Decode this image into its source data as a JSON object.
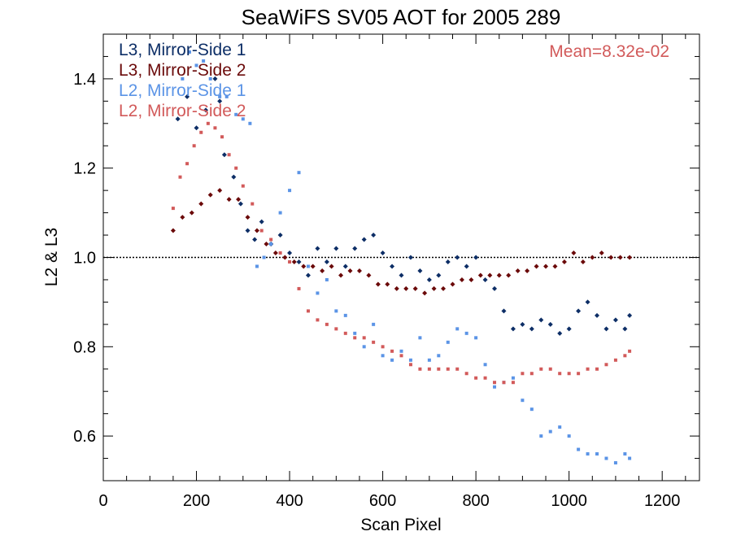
{
  "chart_data": {
    "type": "scatter",
    "title": "SeaWiFS SV05 AOT for 2005 289",
    "xlabel": "Scan Pixel",
    "ylabel": "L2 & L3",
    "xlim": [
      0,
      1280
    ],
    "ylim": [
      0.5,
      1.5
    ],
    "x_ticks": [
      0,
      200,
      400,
      600,
      800,
      1000,
      1200
    ],
    "y_ticks": [
      0.6,
      0.8,
      1.0,
      1.2,
      1.4
    ],
    "x_tick_labels": [
      "0",
      "200",
      "400",
      "600",
      "800",
      "1000",
      "1200"
    ],
    "y_tick_labels": [
      "0.6",
      "0.8",
      "1.0",
      "1.2",
      "1.4"
    ],
    "reference_line": 1.0,
    "annotation": "Mean=8.32e-02",
    "annotation_color": "#d25a5a",
    "legend_position": "top-left",
    "series": [
      {
        "name": "L3, Mirror-Side 1",
        "color": "#0d2e66",
        "marker": "diamond",
        "points": [
          [
            160,
            1.31
          ],
          [
            180,
            1.36
          ],
          [
            200,
            1.29
          ],
          [
            220,
            1.33
          ],
          [
            240,
            1.4
          ],
          [
            250,
            1.35
          ],
          [
            260,
            1.23
          ],
          [
            280,
            1.18
          ],
          [
            295,
            1.12
          ],
          [
            310,
            1.06
          ],
          [
            325,
            1.04
          ],
          [
            340,
            1.08
          ],
          [
            360,
            1.03
          ],
          [
            380,
            1.05
          ],
          [
            400,
            1.01
          ],
          [
            420,
            0.99
          ],
          [
            440,
            0.96
          ],
          [
            460,
            1.02
          ],
          [
            480,
            0.99
          ],
          [
            500,
            1.02
          ],
          [
            520,
            0.98
          ],
          [
            540,
            1.02
          ],
          [
            560,
            1.04
          ],
          [
            580,
            1.05
          ],
          [
            600,
            1.01
          ],
          [
            620,
            0.98
          ],
          [
            640,
            0.96
          ],
          [
            660,
            1.0
          ],
          [
            680,
            0.97
          ],
          [
            700,
            0.95
          ],
          [
            720,
            0.96
          ],
          [
            740,
            0.99
          ],
          [
            760,
            1.0
          ],
          [
            780,
            0.98
          ],
          [
            800,
            1.0
          ],
          [
            820,
            0.95
          ],
          [
            840,
            0.93
          ],
          [
            860,
            0.88
          ],
          [
            880,
            0.84
          ],
          [
            900,
            0.85
          ],
          [
            920,
            0.84
          ],
          [
            940,
            0.86
          ],
          [
            960,
            0.85
          ],
          [
            980,
            0.83
          ],
          [
            1000,
            0.84
          ],
          [
            1020,
            0.88
          ],
          [
            1040,
            0.9
          ],
          [
            1060,
            0.87
          ],
          [
            1080,
            0.84
          ],
          [
            1100,
            0.86
          ],
          [
            1120,
            0.84
          ],
          [
            1130,
            0.87
          ]
        ]
      },
      {
        "name": "L3, Mirror-Side 2",
        "color": "#6b0a0a",
        "marker": "diamond",
        "points": [
          [
            150,
            1.06
          ],
          [
            170,
            1.09
          ],
          [
            190,
            1.1
          ],
          [
            210,
            1.12
          ],
          [
            230,
            1.14
          ],
          [
            250,
            1.15
          ],
          [
            270,
            1.13
          ],
          [
            290,
            1.13
          ],
          [
            310,
            1.09
          ],
          [
            330,
            1.06
          ],
          [
            350,
            1.03
          ],
          [
            370,
            1.01
          ],
          [
            390,
            1.0
          ],
          [
            410,
            0.99
          ],
          [
            430,
            0.98
          ],
          [
            450,
            0.98
          ],
          [
            470,
            0.97
          ],
          [
            490,
            0.98
          ],
          [
            510,
            0.96
          ],
          [
            530,
            0.97
          ],
          [
            550,
            0.97
          ],
          [
            570,
            0.96
          ],
          [
            590,
            0.94
          ],
          [
            610,
            0.94
          ],
          [
            630,
            0.93
          ],
          [
            650,
            0.93
          ],
          [
            670,
            0.93
          ],
          [
            690,
            0.92
          ],
          [
            710,
            0.93
          ],
          [
            730,
            0.93
          ],
          [
            750,
            0.94
          ],
          [
            770,
            0.95
          ],
          [
            790,
            0.95
          ],
          [
            810,
            0.96
          ],
          [
            830,
            0.96
          ],
          [
            850,
            0.96
          ],
          [
            870,
            0.96
          ],
          [
            890,
            0.97
          ],
          [
            910,
            0.97
          ],
          [
            930,
            0.98
          ],
          [
            950,
            0.98
          ],
          [
            970,
            0.98
          ],
          [
            990,
            0.99
          ],
          [
            1010,
            1.01
          ],
          [
            1030,
            0.99
          ],
          [
            1050,
            1.0
          ],
          [
            1070,
            1.01
          ],
          [
            1090,
            1.0
          ],
          [
            1110,
            1.0
          ],
          [
            1130,
            1.0
          ]
        ]
      },
      {
        "name": "L2, Mirror-Side 1",
        "color": "#5b94e6",
        "marker": "square",
        "points": [
          [
            170,
            1.4
          ],
          [
            185,
            1.46
          ],
          [
            200,
            1.43
          ],
          [
            215,
            1.44
          ],
          [
            230,
            1.4
          ],
          [
            250,
            1.36
          ],
          [
            265,
            1.36
          ],
          [
            285,
            1.32
          ],
          [
            300,
            1.31
          ],
          [
            315,
            1.3
          ],
          [
            330,
            0.98
          ],
          [
            345,
            1.0
          ],
          [
            360,
            1.03
          ],
          [
            380,
            1.1
          ],
          [
            400,
            1.15
          ],
          [
            420,
            1.19
          ],
          [
            440,
            0.98
          ],
          [
            460,
            0.92
          ],
          [
            480,
            0.95
          ],
          [
            500,
            0.88
          ],
          [
            520,
            0.87
          ],
          [
            540,
            0.83
          ],
          [
            560,
            0.8
          ],
          [
            580,
            0.85
          ],
          [
            600,
            0.78
          ],
          [
            620,
            0.77
          ],
          [
            640,
            0.79
          ],
          [
            660,
            0.77
          ],
          [
            680,
            0.82
          ],
          [
            700,
            0.77
          ],
          [
            720,
            0.78
          ],
          [
            740,
            0.81
          ],
          [
            760,
            0.84
          ],
          [
            780,
            0.83
          ],
          [
            800,
            0.82
          ],
          [
            820,
            0.76
          ],
          [
            840,
            0.71
          ],
          [
            860,
            0.72
          ],
          [
            880,
            0.73
          ],
          [
            900,
            0.68
          ],
          [
            920,
            0.66
          ],
          [
            940,
            0.6
          ],
          [
            960,
            0.61
          ],
          [
            980,
            0.62
          ],
          [
            1000,
            0.6
          ],
          [
            1020,
            0.57
          ],
          [
            1040,
            0.56
          ],
          [
            1060,
            0.56
          ],
          [
            1080,
            0.55
          ],
          [
            1100,
            0.54
          ],
          [
            1120,
            0.56
          ],
          [
            1130,
            0.55
          ]
        ]
      },
      {
        "name": "L2, Mirror-Side 2",
        "color": "#d25a5a",
        "marker": "square",
        "points": [
          [
            150,
            1.11
          ],
          [
            165,
            1.18
          ],
          [
            180,
            1.21
          ],
          [
            195,
            1.25
          ],
          [
            210,
            1.28
          ],
          [
            225,
            1.3
          ],
          [
            240,
            1.29
          ],
          [
            255,
            1.27
          ],
          [
            270,
            1.23
          ],
          [
            285,
            1.2
          ],
          [
            300,
            1.16
          ],
          [
            320,
            1.12
          ],
          [
            340,
            1.06
          ],
          [
            360,
            1.04
          ],
          [
            380,
            1.01
          ],
          [
            400,
            0.99
          ],
          [
            420,
            0.93
          ],
          [
            440,
            0.88
          ],
          [
            460,
            0.86
          ],
          [
            480,
            0.85
          ],
          [
            500,
            0.84
          ],
          [
            520,
            0.83
          ],
          [
            540,
            0.82
          ],
          [
            560,
            0.82
          ],
          [
            580,
            0.81
          ],
          [
            600,
            0.8
          ],
          [
            620,
            0.79
          ],
          [
            640,
            0.78
          ],
          [
            660,
            0.76
          ],
          [
            680,
            0.75
          ],
          [
            700,
            0.75
          ],
          [
            720,
            0.75
          ],
          [
            740,
            0.75
          ],
          [
            760,
            0.75
          ],
          [
            780,
            0.74
          ],
          [
            800,
            0.73
          ],
          [
            820,
            0.73
          ],
          [
            840,
            0.72
          ],
          [
            860,
            0.72
          ],
          [
            880,
            0.72
          ],
          [
            900,
            0.74
          ],
          [
            920,
            0.74
          ],
          [
            940,
            0.75
          ],
          [
            960,
            0.75
          ],
          [
            980,
            0.74
          ],
          [
            1000,
            0.74
          ],
          [
            1020,
            0.74
          ],
          [
            1040,
            0.75
          ],
          [
            1060,
            0.75
          ],
          [
            1080,
            0.76
          ],
          [
            1100,
            0.77
          ],
          [
            1120,
            0.78
          ],
          [
            1130,
            0.79
          ]
        ]
      }
    ]
  }
}
